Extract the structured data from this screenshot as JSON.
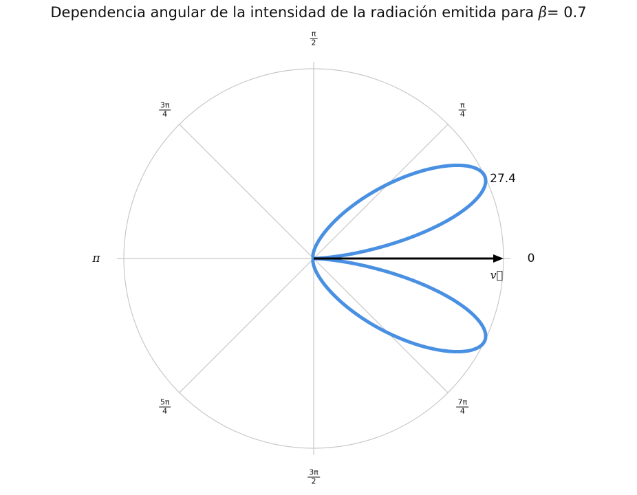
{
  "chart_data": {
    "type": "line",
    "projection": "polar",
    "title_prefix": "Dependencia angular de la intensidad de la radiación emitida para",
    "title_symbol": "β",
    "title_value": "= 0.7",
    "beta": 0.7,
    "r_max": 27.4,
    "r_max_label": "27.4",
    "grid": true,
    "angle_labels": [
      {
        "angle": 0,
        "text": "0",
        "type": "plain"
      },
      {
        "angle": 45,
        "num": "π",
        "den": "4",
        "type": "frac"
      },
      {
        "angle": 90,
        "num": "π",
        "den": "2",
        "type": "frac"
      },
      {
        "angle": 135,
        "num": "3π",
        "den": "4",
        "type": "frac"
      },
      {
        "angle": 180,
        "text": "π",
        "type": "plain"
      },
      {
        "angle": 225,
        "num": "5π",
        "den": "4",
        "type": "frac"
      },
      {
        "angle": 270,
        "num": "3π",
        "den": "2",
        "type": "frac"
      },
      {
        "angle": 315,
        "num": "7π",
        "den": "4",
        "type": "frac"
      }
    ],
    "velocity_label": "v⃗",
    "series": [
      {
        "formula": "sin^2(θ) / (1 - β cos θ)^5",
        "color": "#4a90e2",
        "theta_deg": [
          0,
          5,
          10,
          15,
          20,
          25,
          30,
          35,
          40,
          45,
          50,
          55,
          60,
          70,
          80,
          90,
          120,
          150,
          180
        ],
        "r": [
          0,
          6.5,
          16.0,
          23.6,
          27.1,
          27.4,
          25.0,
          21.2,
          17.1,
          13.2,
          9.97,
          7.39,
          5.38,
          2.84,
          1.56,
          1.0,
          0.17,
          0.017,
          0
        ]
      }
    ],
    "colors": {
      "curve": "#4a90e2",
      "grid": "#c8c8c8",
      "arrow": "#000000"
    }
  }
}
